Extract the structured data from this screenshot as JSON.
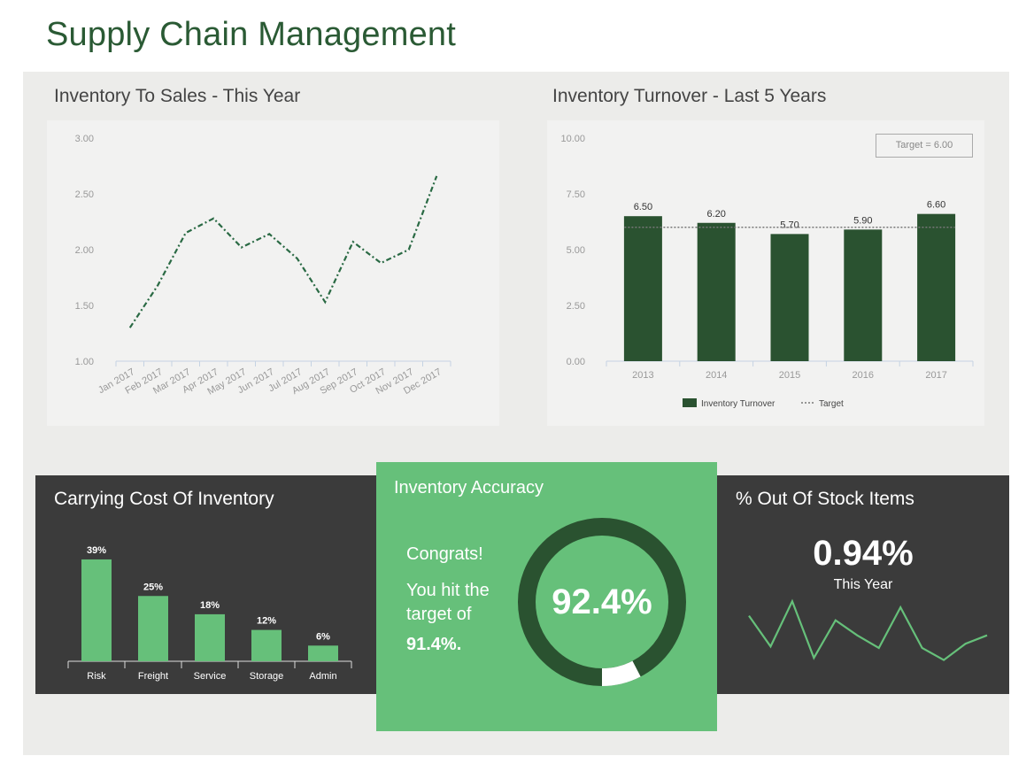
{
  "title": "Supply Chain Management",
  "colors": {
    "dark_green": "#2a5230",
    "light_green": "#66c07a",
    "dark_panel": "#3b3b3b"
  },
  "panels": {
    "inventory_to_sales": {
      "title": "Inventory To Sales - This Year"
    },
    "inventory_turnover": {
      "title": "Inventory Turnover - Last 5 Years",
      "target_box": "Target = 6.00",
      "legend": [
        "Inventory Turnover",
        "Target"
      ]
    },
    "carrying_cost": {
      "title": "Carrying Cost Of Inventory"
    },
    "inventory_accuracy": {
      "title": "Inventory Accuracy",
      "congrats": "Congrats!",
      "message_1": "You hit the",
      "message_2": "target of",
      "target_value": "91.4%.",
      "value": "92.4%",
      "fraction": 0.924
    },
    "out_of_stock": {
      "title": "% Out Of Stock Items",
      "value": "0.94%",
      "period": "This Year"
    }
  },
  "chart_data": [
    {
      "type": "line",
      "categories": [
        "Jan 2017",
        "Feb 2017",
        "Mar 2017",
        "Apr 2017",
        "May 2017",
        "Jun 2017",
        "Jul 2017",
        "Aug 2017",
        "Sep 2017",
        "Oct 2017",
        "Nov 2017",
        "Dec 2017"
      ],
      "values": [
        1.3,
        1.68,
        2.15,
        2.28,
        2.02,
        2.14,
        1.92,
        1.53,
        2.07,
        1.88,
        2.0,
        2.66
      ],
      "yticks": [
        "1.00",
        "1.50",
        "2.00",
        "2.50",
        "3.00"
      ],
      "ylim": [
        1,
        3
      ],
      "line_style": "dash-dot",
      "color": "#2a6a44"
    },
    {
      "type": "bar",
      "categories": [
        "2013",
        "2014",
        "2015",
        "2016",
        "2017"
      ],
      "series": [
        {
          "name": "Inventory Turnover",
          "values": [
            6.5,
            6.2,
            5.7,
            5.9,
            6.6
          ],
          "labels": [
            "6.50",
            "6.20",
            "5.70",
            "5.90",
            "6.60"
          ]
        }
      ],
      "target": {
        "name": "Target",
        "value": 6.0
      },
      "yticks": [
        "0.00",
        "2.50",
        "5.00",
        "7.50",
        "10.00"
      ],
      "ylim": [
        0,
        10
      ],
      "legend": "bottom"
    },
    {
      "type": "bar",
      "categories": [
        "Risk",
        "Freight",
        "Service",
        "Storage",
        "Admin"
      ],
      "values": [
        39,
        25,
        18,
        12,
        6
      ],
      "labels": [
        "39%",
        "25%",
        "18%",
        "12%",
        "6%"
      ]
    },
    {
      "type": "line",
      "values": [
        16,
        5.8,
        20.8,
        2,
        14.5,
        9.5,
        5.3,
        18.8,
        5.3,
        1.3,
        6.7,
        9.5
      ]
    }
  ]
}
